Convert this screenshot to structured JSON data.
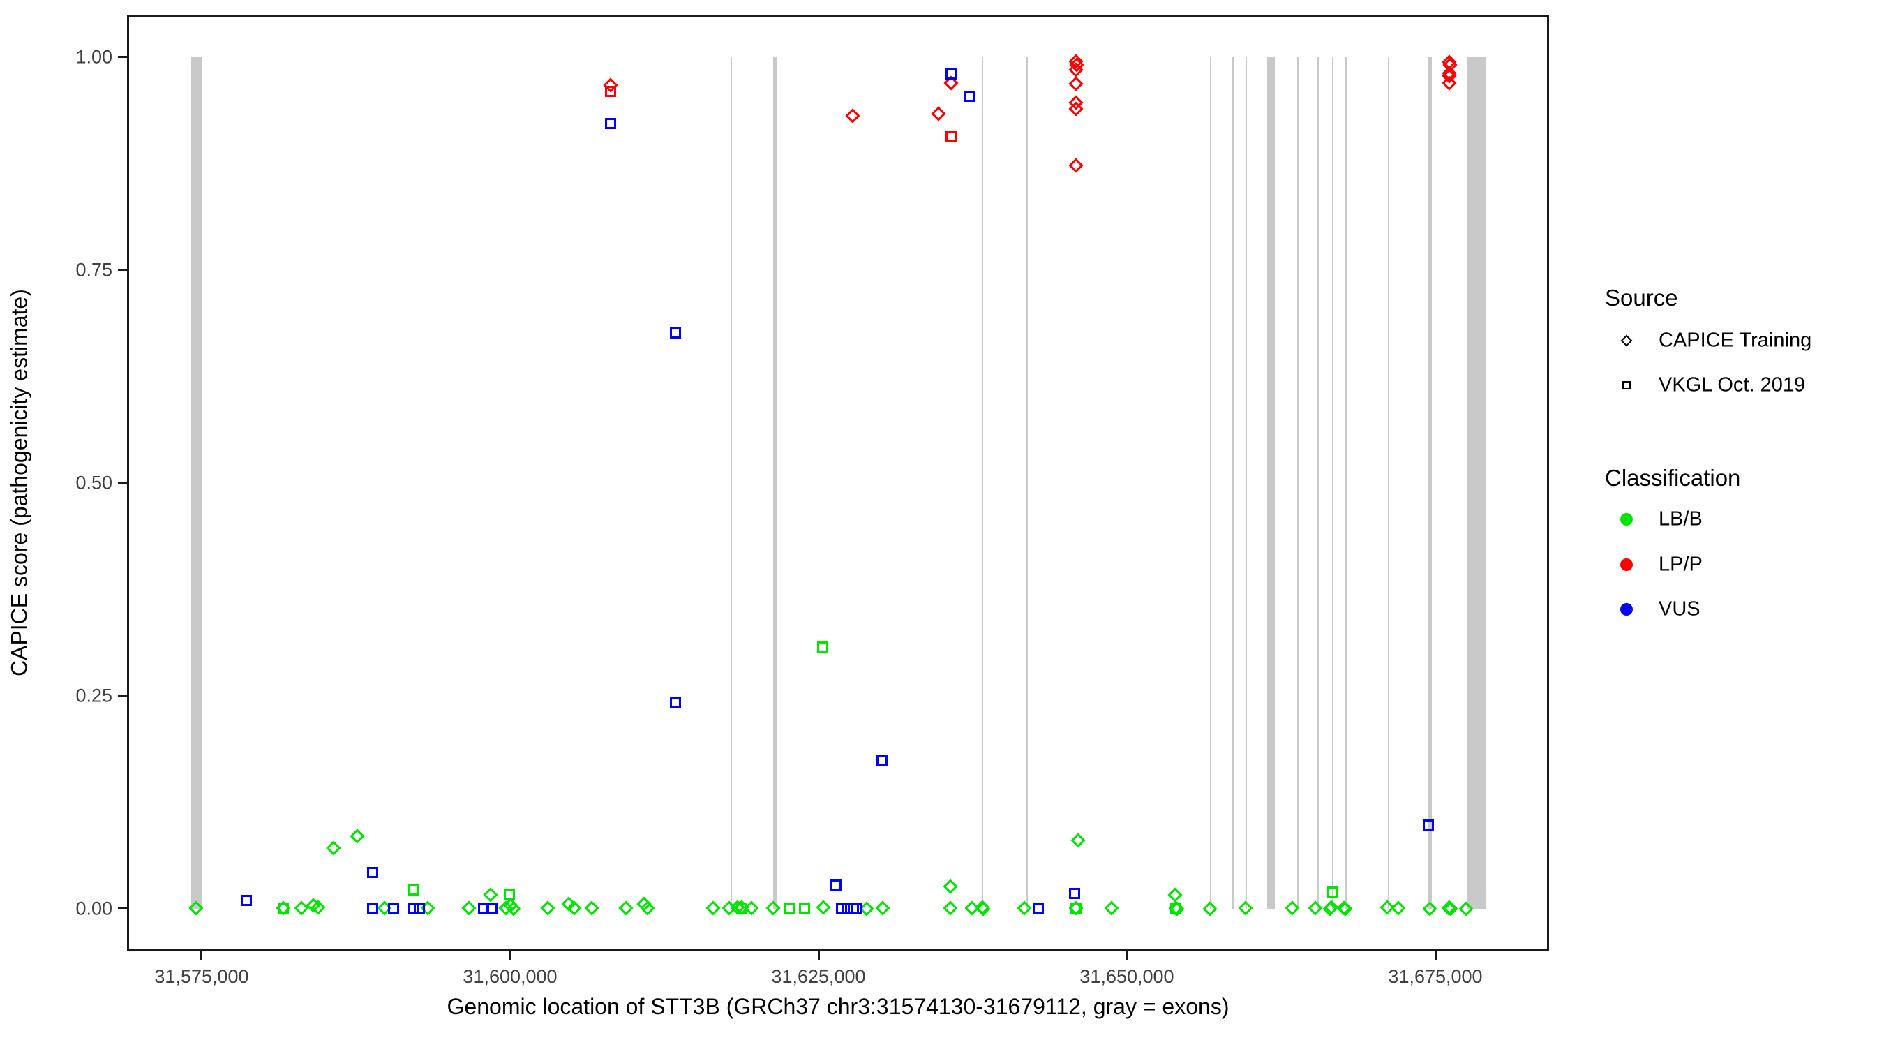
{
  "figure": {
    "x_axis_title": "Genomic location of STT3B (GRCh37 chr3:31574130-31679112, gray = exons)",
    "y_axis_title": "CAPICE score (pathogenicity estimate)"
  },
  "legend": {
    "source": {
      "title": "Source",
      "items": [
        {
          "label": "CAPICE Training",
          "marker": "diamond"
        },
        {
          "label": "VKGL Oct. 2019",
          "marker": "square"
        }
      ]
    },
    "classification": {
      "title": "Classification",
      "items": [
        {
          "label": "LB/B",
          "color": "#00E600"
        },
        {
          "label": "LP/P",
          "color": "#FF0000"
        },
        {
          "label": "VUS",
          "color": "#0000FF"
        }
      ]
    }
  },
  "chart_data": {
    "type": "scatter",
    "title": "",
    "xlabel": "Genomic location of STT3B (GRCh37 chr3:31574130-31679112, gray = exons)",
    "ylabel": "CAPICE score (pathogenicity estimate)",
    "x_domain": [
      31568948,
      31684219
    ],
    "y_domain": [
      -0.0492,
      1.05
    ],
    "grid": "off",
    "legend_position": "right",
    "x_ticks": [
      {
        "value": 31575000,
        "label": "31,575,000"
      },
      {
        "value": 31600000,
        "label": "31,600,000"
      },
      {
        "value": 31625000,
        "label": "31,625,000"
      },
      {
        "value": 31650000,
        "label": "31,650,000"
      },
      {
        "value": 31675000,
        "label": "31,675,000"
      }
    ],
    "y_ticks": [
      {
        "value": 0.0,
        "label": "0.00"
      },
      {
        "value": 0.25,
        "label": "0.25"
      },
      {
        "value": 0.5,
        "label": "0.50"
      },
      {
        "value": 0.75,
        "label": "0.75"
      },
      {
        "value": 1.0,
        "label": "1.00"
      }
    ],
    "exon_color": "#C9C9C9",
    "exons": [
      {
        "start": 31574152,
        "end": 31575000
      },
      {
        "start": 31617873,
        "end": 31617990
      },
      {
        "start": 31621323,
        "end": 31621610
      },
      {
        "start": 31638234,
        "end": 31638350
      },
      {
        "start": 31641853,
        "end": 31641970
      },
      {
        "start": 31656728,
        "end": 31656840
      },
      {
        "start": 31658538,
        "end": 31658650
      },
      {
        "start": 31659613,
        "end": 31659730
      },
      {
        "start": 31661366,
        "end": 31661990
      },
      {
        "start": 31663798,
        "end": 31663910
      },
      {
        "start": 31665438,
        "end": 31665550
      },
      {
        "start": 31666626,
        "end": 31666740
      },
      {
        "start": 31667700,
        "end": 31667815
      },
      {
        "start": 31671151,
        "end": 31671265
      },
      {
        "start": 31674431,
        "end": 31674715
      },
      {
        "start": 31677542,
        "end": 31679112
      }
    ],
    "series": [
      {
        "source": "CAPICE Training",
        "classification": "LB/B",
        "marker": "diamond",
        "color": "#00E600",
        "points": [
          [
            31574550,
            0.001
          ],
          [
            31581620,
            0.001
          ],
          [
            31583090,
            0.001
          ],
          [
            31584050,
            0.004
          ],
          [
            31584450,
            0.002
          ],
          [
            31585690,
            0.071
          ],
          [
            31587610,
            0.085
          ],
          [
            31589820,
            0.001
          ],
          [
            31593330,
            0.001
          ],
          [
            31596650,
            0.001
          ],
          [
            31598420,
            0.016
          ],
          [
            31599660,
            0.001
          ],
          [
            31600060,
            0.004
          ],
          [
            31600290,
            0.0
          ],
          [
            31603050,
            0.001
          ],
          [
            31604750,
            0.006
          ],
          [
            31605200,
            0.001
          ],
          [
            31606620,
            0.001
          ],
          [
            31609390,
            0.001
          ],
          [
            31610860,
            0.006
          ],
          [
            31611140,
            0.001
          ],
          [
            31616460,
            0.001
          ],
          [
            31617760,
            0.001
          ],
          [
            31618440,
            0.002
          ],
          [
            31618780,
            0.002
          ],
          [
            31619570,
            0.001
          ],
          [
            31621320,
            0.001
          ],
          [
            31625390,
            0.002
          ],
          [
            31628900,
            0.0
          ],
          [
            31630200,
            0.001
          ],
          [
            31635690,
            0.026
          ],
          [
            31635690,
            0.001
          ],
          [
            31637440,
            0.001
          ],
          [
            31638290,
            0.002
          ],
          [
            31638360,
            0.0
          ],
          [
            31641680,
            0.001
          ],
          [
            31645870,
            0.001
          ],
          [
            31646040,
            0.08
          ],
          [
            31648760,
            0.001
          ],
          [
            31653900,
            0.016
          ],
          [
            31653960,
            0.001
          ],
          [
            31654060,
            0.0
          ],
          [
            31656730,
            0.0
          ],
          [
            31659610,
            0.001
          ],
          [
            31663400,
            0.001
          ],
          [
            31665270,
            0.001
          ],
          [
            31666460,
            0.0
          ],
          [
            31666570,
            0.002
          ],
          [
            31667590,
            0.001
          ],
          [
            31667700,
            0.0
          ],
          [
            31671090,
            0.002
          ],
          [
            31672000,
            0.001
          ],
          [
            31674540,
            0.0
          ],
          [
            31676050,
            0.001
          ],
          [
            31676130,
            0.002
          ],
          [
            31676220,
            0.0
          ],
          [
            31677490,
            0.0
          ]
        ]
      },
      {
        "source": "CAPICE Training",
        "classification": "LP/P",
        "marker": "diamond",
        "color": "#FF0000",
        "points": [
          [
            31608140,
            0.967
          ],
          [
            31627770,
            0.931
          ],
          [
            31634730,
            0.934
          ],
          [
            31635750,
            0.97
          ],
          [
            31645870,
            0.995
          ],
          [
            31645950,
            0.991
          ],
          [
            31645870,
            0.985
          ],
          [
            31645870,
            0.969
          ],
          [
            31645870,
            0.947
          ],
          [
            31645870,
            0.939
          ],
          [
            31645870,
            0.873
          ],
          [
            31676130,
            0.994
          ],
          [
            31676210,
            0.991
          ],
          [
            31676130,
            0.981
          ],
          [
            31676130,
            0.978
          ],
          [
            31676130,
            0.97
          ]
        ]
      },
      {
        "source": "VKGL Oct. 2019",
        "classification": "LB/B",
        "marker": "square",
        "color": "#00E600",
        "points": [
          [
            31581620,
            0.001
          ],
          [
            31592190,
            0.022
          ],
          [
            31599940,
            0.016
          ],
          [
            31618780,
            0.001
          ],
          [
            31622680,
            0.001
          ],
          [
            31623870,
            0.001
          ],
          [
            31625340,
            0.307
          ],
          [
            31645870,
            0.0
          ],
          [
            31653960,
            0.001
          ],
          [
            31666690,
            0.02
          ]
        ]
      },
      {
        "source": "VKGL Oct. 2019",
        "classification": "LP/P",
        "marker": "square",
        "color": "#FF0000",
        "points": [
          [
            31608140,
            0.96
          ],
          [
            31635750,
            0.907
          ]
        ]
      },
      {
        "source": "VKGL Oct. 2019",
        "classification": "VUS",
        "marker": "square",
        "color": "#0000FF",
        "points": [
          [
            31578620,
            0.01
          ],
          [
            31588860,
            0.043
          ],
          [
            31588860,
            0.001
          ],
          [
            31590560,
            0.001
          ],
          [
            31592190,
            0.001
          ],
          [
            31592650,
            0.001
          ],
          [
            31597850,
            0.0
          ],
          [
            31598530,
            0.0
          ],
          [
            31608140,
            0.922
          ],
          [
            31613400,
            0.676
          ],
          [
            31613400,
            0.243
          ],
          [
            31626410,
            0.028
          ],
          [
            31626860,
            0.0
          ],
          [
            31627310,
            0.0
          ],
          [
            31627820,
            0.001
          ],
          [
            31628100,
            0.001
          ],
          [
            31630150,
            0.174
          ],
          [
            31635750,
            0.98
          ],
          [
            31637220,
            0.954
          ],
          [
            31642820,
            0.001
          ],
          [
            31645760,
            0.018
          ],
          [
            31674430,
            0.098
          ]
        ]
      }
    ]
  }
}
